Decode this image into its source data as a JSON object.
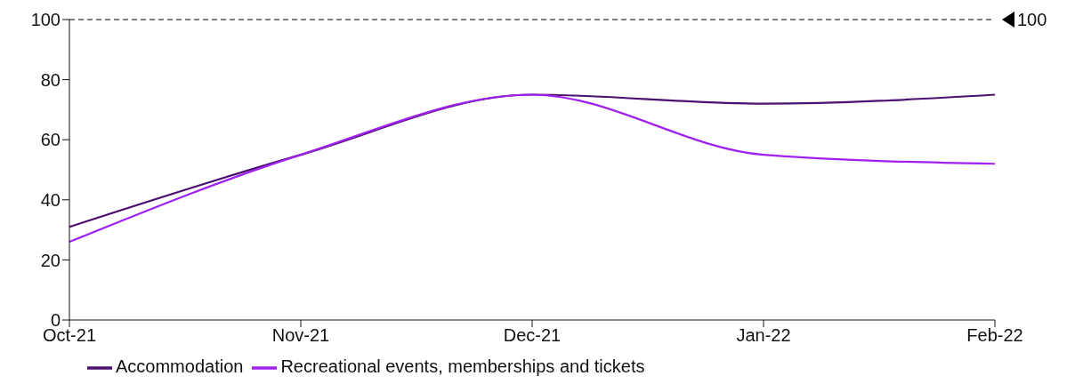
{
  "chart_data": {
    "type": "line",
    "categories": [
      "Oct-21",
      "Nov-21",
      "Dec-21",
      "Jan-22",
      "Feb-22"
    ],
    "series": [
      {
        "name": "Accommodation",
        "color": "#4b0f6e",
        "values": [
          31,
          55,
          75,
          72,
          75
        ]
      },
      {
        "name": "Recreational events, memberships and tickets",
        "color": "#a020f0",
        "values": [
          26,
          55,
          75,
          55,
          52
        ]
      }
    ],
    "ylim": [
      0,
      100
    ],
    "yticks": [
      0,
      20,
      40,
      60,
      80,
      100
    ],
    "ref_lines": [
      {
        "axis": "y",
        "value": 100,
        "label": "100",
        "color": "#000000",
        "line_style": "dashed"
      }
    ],
    "grid": false,
    "legend": "bottom",
    "marker": "none",
    "line_style": "solid"
  }
}
